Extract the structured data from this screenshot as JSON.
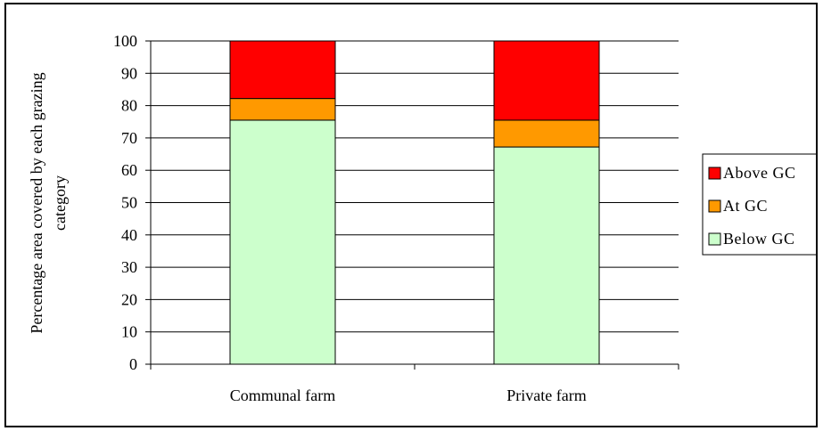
{
  "chart_data": {
    "type": "bar",
    "stacked": true,
    "categories": [
      "Communal farm",
      "Private farm"
    ],
    "series": [
      {
        "name": "Below GC",
        "values": [
          75.5,
          67.2
        ],
        "color": "#ccffcc"
      },
      {
        "name": "At GC",
        "values": [
          6.7,
          8.3
        ],
        "color": "#ff9900"
      },
      {
        "name": "Above GC",
        "values": [
          17.8,
          24.5
        ],
        "color": "#ff0000"
      }
    ],
    "ylabel_lines": [
      "Percentage area covered by each grazing",
      "category"
    ],
    "xlabel": "",
    "ylim": [
      0,
      100
    ],
    "yticks": [
      "0",
      "10",
      "20",
      "30",
      "40",
      "50",
      "60",
      "70",
      "80",
      "90",
      "100"
    ],
    "grid": true,
    "legend_position": "right",
    "legend_order": [
      "Above GC",
      "At GC",
      "Below GC"
    ]
  }
}
